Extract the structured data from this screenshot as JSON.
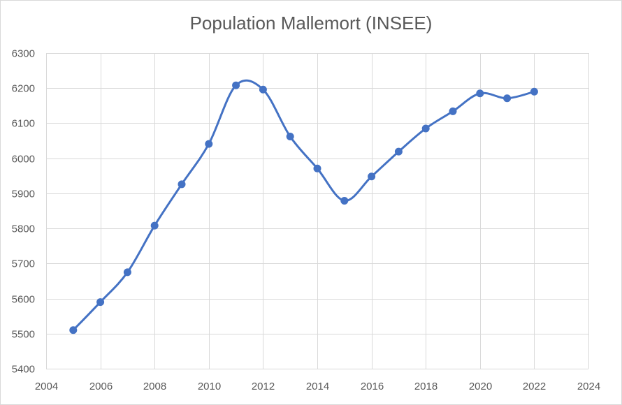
{
  "chart_data": {
    "type": "scatter",
    "title": "Population Mallemort (INSEE)",
    "xlabel": "",
    "ylabel": "",
    "xlim": [
      2004,
      2024
    ],
    "ylim": [
      5400,
      6300
    ],
    "x_ticks": [
      "2004",
      "2006",
      "2008",
      "2010",
      "2012",
      "2014",
      "2016",
      "2018",
      "2020",
      "2022",
      "2024"
    ],
    "y_ticks": [
      "5400",
      "5500",
      "5600",
      "5700",
      "5800",
      "5900",
      "6000",
      "6100",
      "6200",
      "6300"
    ],
    "grid": true,
    "smooth": true,
    "color": "#4472c4",
    "series": [
      {
        "x": [
          2005,
          2006,
          2007,
          2008,
          2009,
          2010,
          2011,
          2012,
          2013,
          2014,
          2015,
          2016,
          2017,
          2018,
          2019,
          2020,
          2021,
          2022
        ],
        "y": [
          5510,
          5590,
          5675,
          5808,
          5926,
          6041,
          6208,
          6196,
          6062,
          5971,
          5879,
          5948,
          6019,
          6085,
          6134,
          6185,
          6171,
          6190
        ]
      }
    ]
  }
}
